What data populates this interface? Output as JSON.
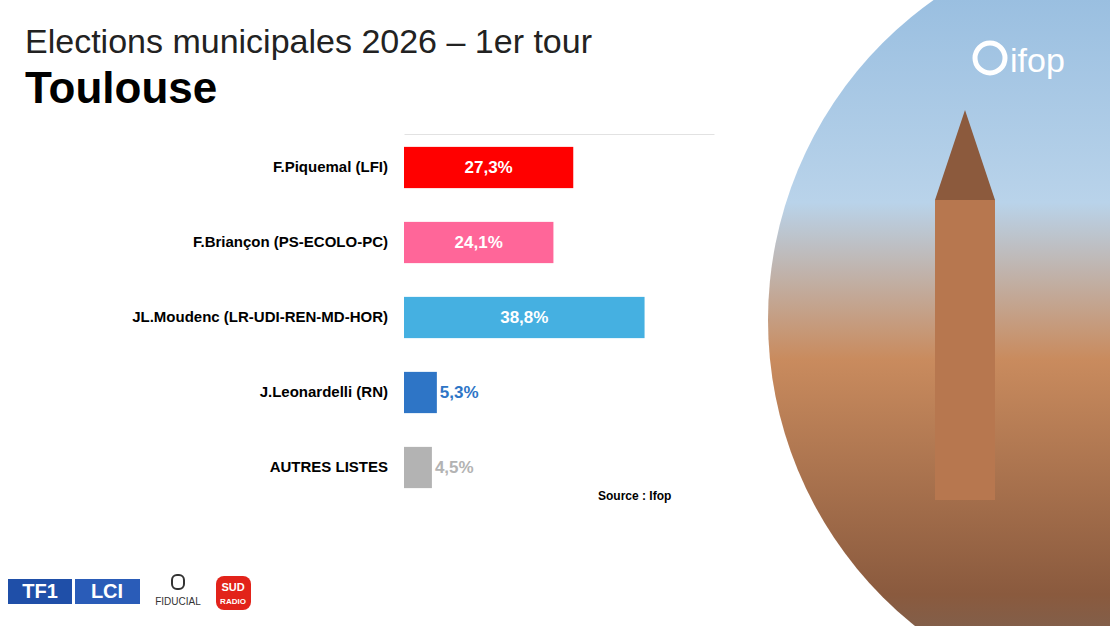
{
  "chart_data": {
    "type": "bar",
    "title": "Elections municipales 2026 – 1er tour",
    "subtitle": "Toulouse",
    "orientation": "horizontal",
    "categories": [
      "F.Piquemal (LFI)",
      "F.Briançon (PS-ECOLO-PC)",
      "JL.Moudenc (LR-UDI-REN-MD-HOR)",
      "J.Leonardelli (RN)",
      "AUTRES LISTES"
    ],
    "values": [
      27.3,
      24.1,
      38.8,
      5.3,
      4.5
    ],
    "value_labels": [
      "27,3%",
      "24,1%",
      "38,8%",
      "5,3%",
      "4,5%"
    ],
    "colors": [
      "#ff0000",
      "#ff6699",
      "#45b0e1",
      "#2e75c6",
      "#b3b3b3"
    ],
    "xlim": [
      0,
      50
    ],
    "tick_labels": "y",
    "data_labels": true,
    "source": "Source : Ifop",
    "logos": [
      "ifop",
      "TF1",
      "LCI",
      "FIDUCIAL",
      "SUD",
      "RADIO"
    ]
  }
}
